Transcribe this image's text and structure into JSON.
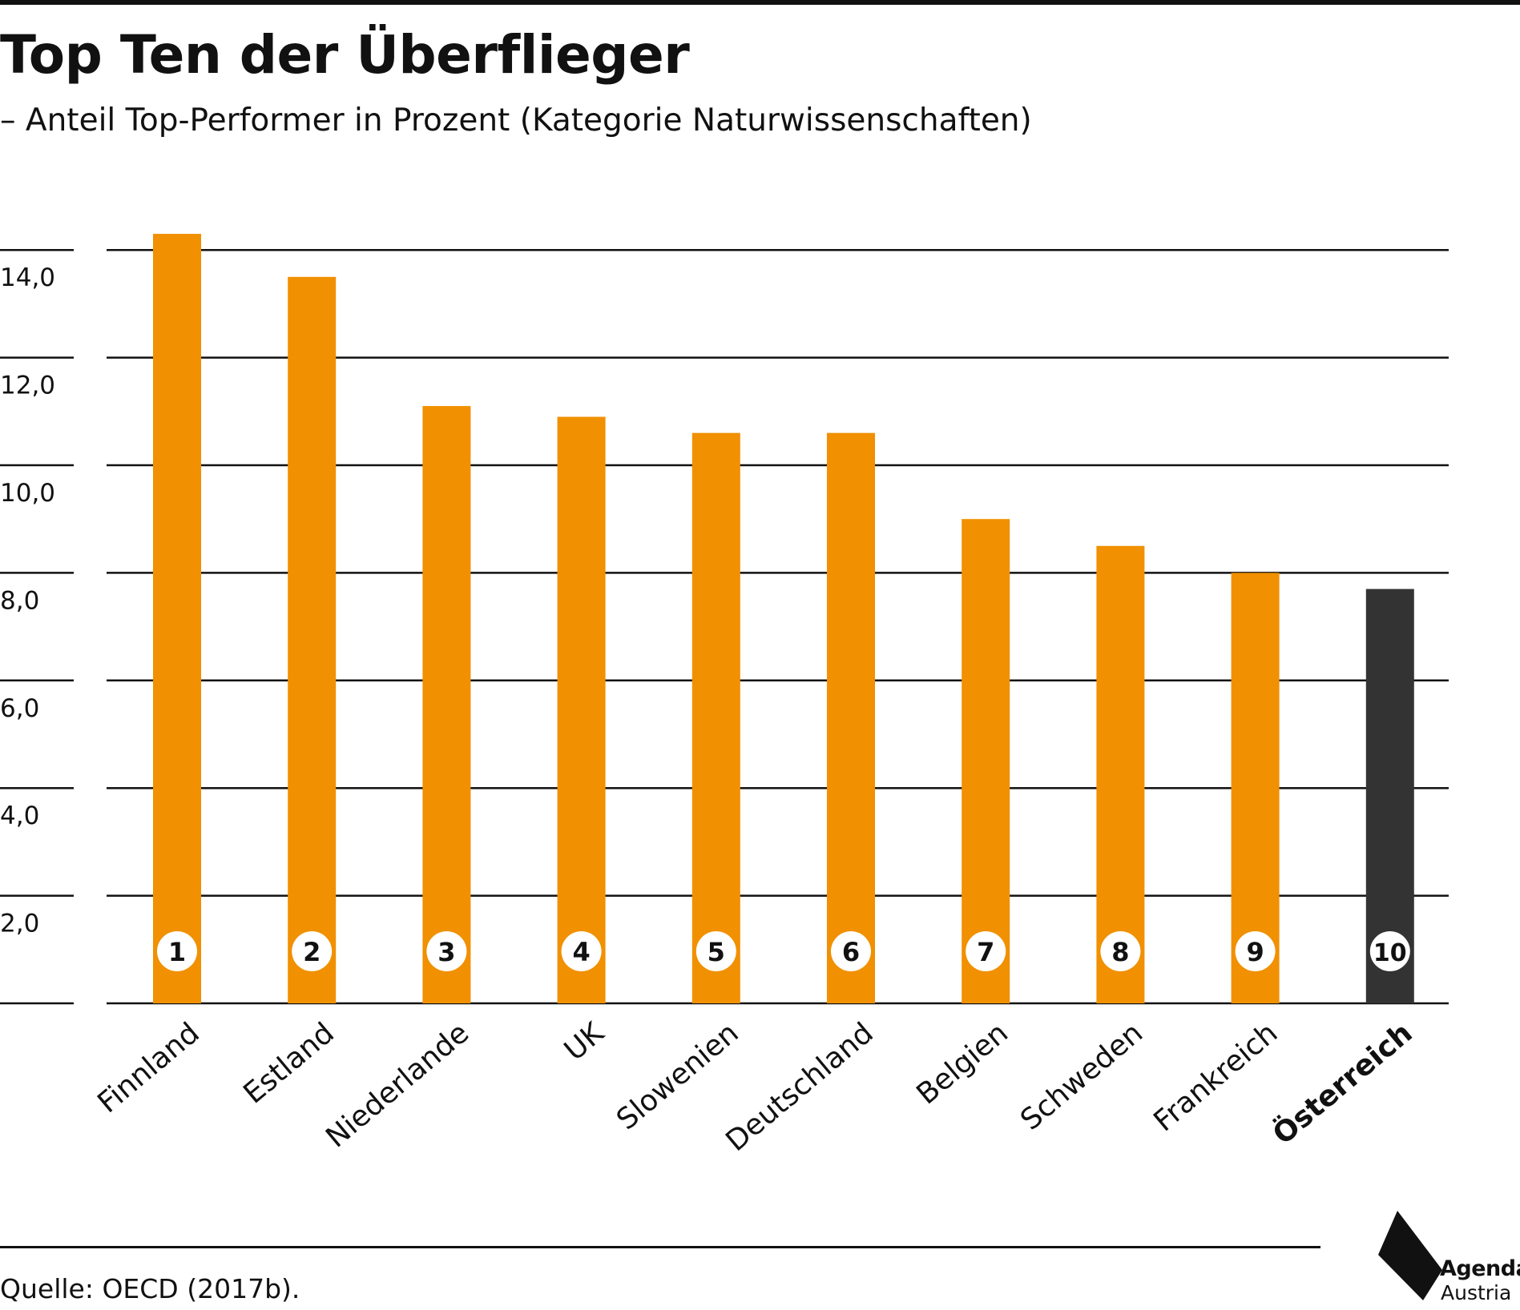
{
  "title": "Top Ten der Überflieger",
  "subtitle": "– Anteil Top-Performer in Prozent (Kategorie Naturwissenschaften)",
  "source": "Quelle: OECD (2017b).",
  "logo": {
    "line1": "Agenda",
    "line2": "Austria"
  },
  "colors": {
    "bar": "#F19000",
    "highlight": "#333333",
    "grid": "#111111",
    "badge_bg": "#ffffff"
  },
  "chart_data": {
    "type": "bar",
    "title": "Top Ten der Überflieger",
    "subtitle": "– Anteil Top-Performer in Prozent (Kategorie Naturwissenschaften)",
    "categories": [
      "Finnland",
      "Estland",
      "Niederlande",
      "UK",
      "Slowenien",
      "Deutschland",
      "Belgien",
      "Schweden",
      "Frankreich",
      "Österreich"
    ],
    "values": [
      14.3,
      13.5,
      11.1,
      10.9,
      10.6,
      10.6,
      9.0,
      8.5,
      8.0,
      7.7
    ],
    "ranks": [
      "1",
      "2",
      "3",
      "4",
      "5",
      "6",
      "7",
      "8",
      "9",
      "10"
    ],
    "highlight_index": 9,
    "yticks": [
      2,
      4,
      6,
      8,
      10,
      12,
      14
    ],
    "ytick_labels": [
      "2,0",
      "4,0",
      "6,0",
      "8,0",
      "10,0",
      "12,0",
      "14,0"
    ],
    "ylim": [
      0,
      14
    ],
    "xlabel": "",
    "ylabel": "",
    "grid": true,
    "legend": "none"
  }
}
